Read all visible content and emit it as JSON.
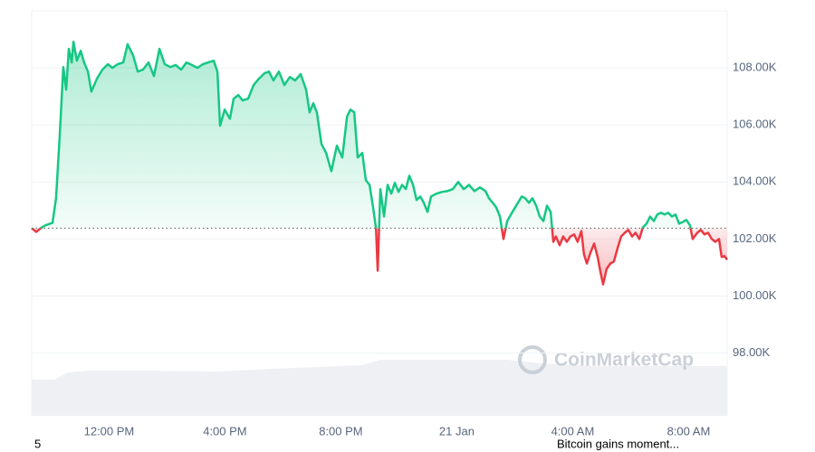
{
  "chart_data": {
    "type": "line",
    "x": [
      9.33,
      9.49,
      9.64,
      9.8,
      10.05,
      10.17,
      10.3,
      10.42,
      10.52,
      10.61,
      10.71,
      10.77,
      10.89,
      11.02,
      11.14,
      11.27,
      11.39,
      11.58,
      11.77,
      11.96,
      12.11,
      12.3,
      12.49,
      12.64,
      12.83,
      12.99,
      13.17,
      13.36,
      13.55,
      13.74,
      13.92,
      14.11,
      14.3,
      14.49,
      14.67,
      14.86,
      15.05,
      15.24,
      15.42,
      15.61,
      15.74,
      15.83,
      15.99,
      16.17,
      16.3,
      16.46,
      16.61,
      16.8,
      16.99,
      17.17,
      17.36,
      17.52,
      17.67,
      17.86,
      18.05,
      18.24,
      18.42,
      18.61,
      18.8,
      18.92,
      19.05,
      19.17,
      19.33,
      19.49,
      19.67,
      19.86,
      20.05,
      20.21,
      20.33,
      20.46,
      20.58,
      20.74,
      20.86,
      20.99,
      21.11,
      21.21,
      21.27,
      21.36,
      21.49,
      21.61,
      21.74,
      21.86,
      21.99,
      22.11,
      22.24,
      22.36,
      22.49,
      22.61,
      22.74,
      22.86,
      22.99,
      23.11,
      23.3,
      23.49,
      23.67,
      23.86,
      24.05,
      24.24,
      24.42,
      24.61,
      24.8,
      24.99,
      25.11,
      25.24,
      25.36,
      25.49,
      25.61,
      25.74,
      25.92,
      26.11,
      26.24,
      26.36,
      26.49,
      26.61,
      26.74,
      26.86,
      26.99,
      27.11,
      27.24,
      27.33,
      27.42,
      27.55,
      27.67,
      27.8,
      27.92,
      28.05,
      28.17,
      28.3,
      28.39,
      28.49,
      28.61,
      28.74,
      28.86,
      28.95,
      29.05,
      29.17,
      29.3,
      29.42,
      29.55,
      29.67,
      29.8,
      29.92,
      30.05,
      30.17,
      30.3,
      30.42,
      30.55,
      30.67,
      30.8,
      30.92,
      31.05,
      31.17,
      31.3,
      31.42,
      31.55,
      31.67,
      31.8,
      31.92,
      32.05,
      32.14,
      32.3,
      32.42,
      32.55,
      32.67,
      32.8,
      32.92,
      33.05,
      33.14,
      33.24,
      33.33
    ],
    "values": [
      102380,
      102250,
      102380,
      102480,
      102570,
      103430,
      105650,
      108030,
      107240,
      108670,
      108190,
      108920,
      108250,
      108600,
      108190,
      107870,
      107170,
      107620,
      107940,
      108130,
      108000,
      108130,
      108190,
      108830,
      108440,
      107870,
      107940,
      108190,
      107710,
      108670,
      108130,
      108030,
      108100,
      107940,
      108190,
      108100,
      108000,
      108130,
      108190,
      108250,
      107870,
      105970,
      106540,
      106220,
      106920,
      107050,
      106860,
      106920,
      107400,
      107620,
      107810,
      107870,
      107560,
      107870,
      107400,
      107680,
      107560,
      107780,
      107240,
      106440,
      106760,
      106440,
      105330,
      105020,
      104380,
      105270,
      104860,
      106290,
      106540,
      106440,
      104860,
      105020,
      104060,
      103900,
      103110,
      102380,
      100890,
      103750,
      102790,
      103900,
      103590,
      103970,
      103650,
      103900,
      103750,
      104220,
      103900,
      103370,
      103490,
      103270,
      102950,
      103490,
      103590,
      103650,
      103680,
      103750,
      104000,
      103750,
      103900,
      103680,
      103810,
      103680,
      103430,
      103270,
      103110,
      102790,
      102000,
      102630,
      102950,
      103270,
      103490,
      103430,
      103270,
      103430,
      103170,
      102790,
      102630,
      103170,
      102950,
      101900,
      102090,
      101780,
      102090,
      101900,
      102090,
      102160,
      101900,
      102280,
      101460,
      101140,
      101520,
      101840,
      101370,
      100890,
      100410,
      100950,
      101140,
      101210,
      101680,
      102090,
      102220,
      102320,
      102090,
      102220,
      102000,
      102410,
      102540,
      102790,
      102630,
      102860,
      102920,
      102860,
      102920,
      102790,
      102860,
      102540,
      102600,
      102670,
      102480,
      102000,
      102220,
      102320,
      102160,
      102220,
      102000,
      101900,
      102000,
      101370,
      101400,
      101270
    ],
    "baseline": 102380,
    "up_color": "#16c784",
    "down_color": "#ea3943",
    "xlim": [
      9.33,
      33.33
    ],
    "xticks": [
      {
        "value": 12,
        "label": "12:00 PM"
      },
      {
        "value": 16,
        "label": "4:00 PM"
      },
      {
        "value": 20,
        "label": "8:00 PM"
      },
      {
        "value": 24,
        "label": "21 Jan"
      },
      {
        "value": 28,
        "label": "4:00 AM"
      },
      {
        "value": 32,
        "label": "8:00 AM"
      }
    ],
    "ylim": [
      95800,
      110000
    ],
    "yticks": [
      {
        "value": 98000,
        "label": "98.00K"
      },
      {
        "value": 100000,
        "label": "100.00K"
      },
      {
        "value": 102000,
        "label": "102.00K"
      },
      {
        "value": 104000,
        "label": "104.00K"
      },
      {
        "value": 106000,
        "label": "106.00K"
      },
      {
        "value": 108000,
        "label": "108.00K"
      }
    ],
    "grid": true,
    "watermark": "CoinMarketCap",
    "marker_label": "5",
    "news_label": "Bitcoin gains moment..."
  }
}
